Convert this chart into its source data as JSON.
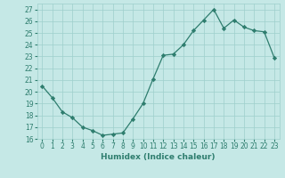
{
  "x": [
    0,
    1,
    2,
    3,
    4,
    5,
    6,
    7,
    8,
    9,
    10,
    11,
    12,
    13,
    14,
    15,
    16,
    17,
    18,
    19,
    20,
    21,
    22,
    23
  ],
  "y": [
    20.5,
    19.5,
    18.3,
    17.8,
    17.0,
    16.7,
    16.3,
    16.4,
    16.5,
    17.7,
    19.0,
    21.1,
    23.1,
    23.2,
    24.0,
    25.2,
    26.1,
    27.0,
    25.4,
    26.1,
    25.5,
    25.2,
    25.1,
    22.9
  ],
  "line_color": "#2e7d6e",
  "marker": "D",
  "marker_size": 2.2,
  "bg_color": "#c5e8e6",
  "grid_color": "#9ecfcc",
  "xlabel": "Humidex (Indice chaleur)",
  "xlim": [
    -0.5,
    23.5
  ],
  "ylim": [
    16,
    27.5
  ],
  "yticks": [
    16,
    17,
    18,
    19,
    20,
    21,
    22,
    23,
    24,
    25,
    26,
    27
  ],
  "xticks": [
    0,
    1,
    2,
    3,
    4,
    5,
    6,
    7,
    8,
    9,
    10,
    11,
    12,
    13,
    14,
    15,
    16,
    17,
    18,
    19,
    20,
    21,
    22,
    23
  ],
  "xtick_labels": [
    "0",
    "1",
    "2",
    "3",
    "4",
    "5",
    "6",
    "7",
    "8",
    "9",
    "10",
    "11",
    "12",
    "13",
    "14",
    "15",
    "16",
    "17",
    "18",
    "19",
    "20",
    "21",
    "22",
    "23"
  ],
  "font_color": "#2e7d6e",
  "tick_fontsize": 5.5,
  "xlabel_fontsize": 6.5,
  "linewidth": 0.9
}
